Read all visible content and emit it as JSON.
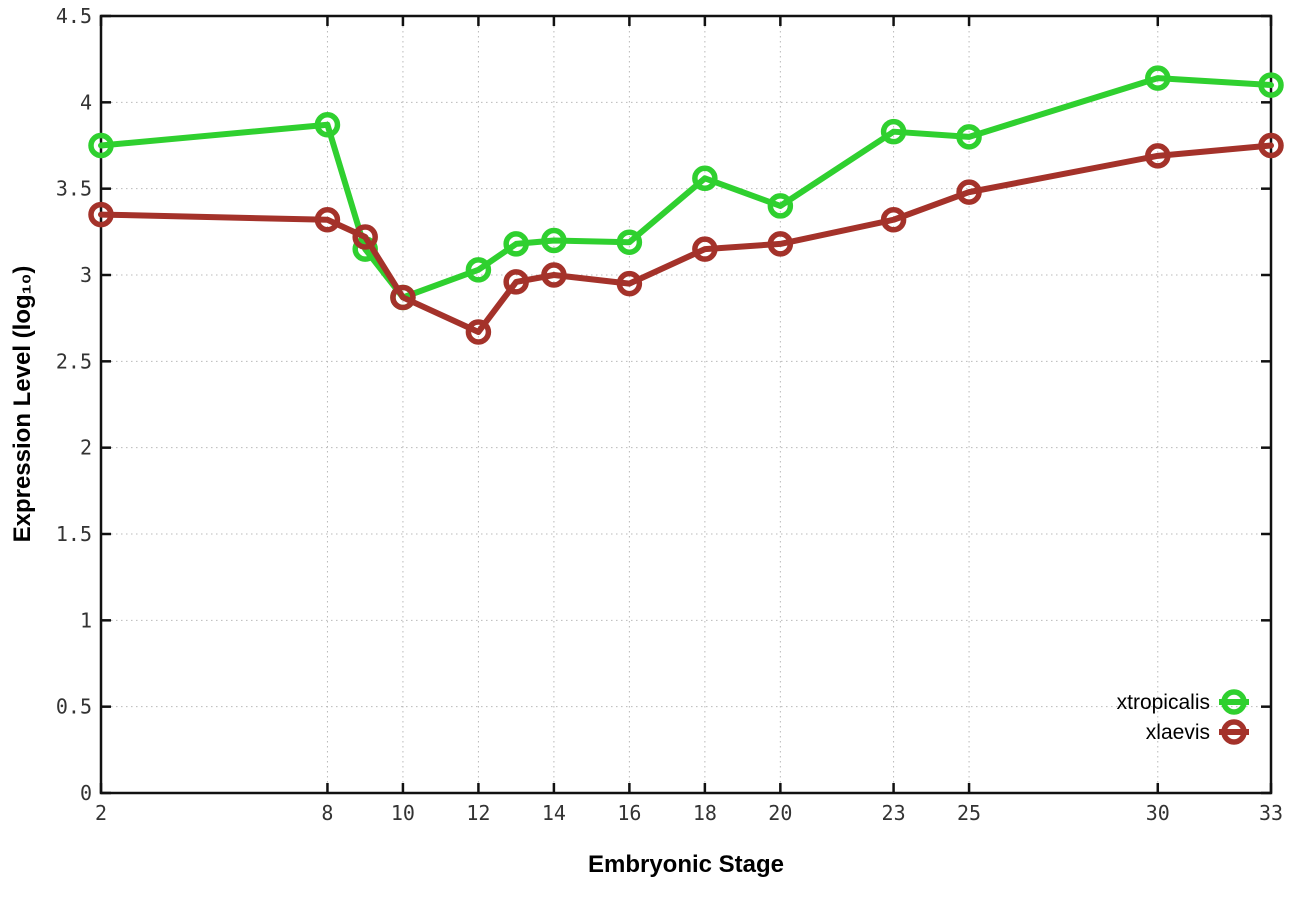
{
  "figure": {
    "background": "#ffffff",
    "border_color": "#111111",
    "grid_color": "#b9b9b9",
    "tick_label_color": "#333333"
  },
  "chart_data": {
    "type": "line",
    "title": "",
    "xlabel": "Embryonic Stage",
    "ylabel": "Expression Level (log₁₀)",
    "xlim": [
      2,
      33
    ],
    "ylim": [
      0,
      4.5
    ],
    "x_ticks": [
      2,
      8,
      10,
      12,
      14,
      16,
      18,
      20,
      23,
      25,
      30,
      33
    ],
    "y_ticks": [
      0,
      0.5,
      1,
      1.5,
      2,
      2.5,
      3,
      3.5,
      4,
      4.5
    ],
    "grid": "dotted",
    "legend_position": "bottom-right-inside",
    "x": [
      2,
      8,
      9,
      10,
      12,
      13,
      14,
      16,
      18,
      20,
      23,
      25,
      30,
      33
    ],
    "series": [
      {
        "name": "xtropicalis",
        "color": "#2fd02f",
        "marker": "open-circle",
        "values": [
          3.75,
          3.87,
          3.15,
          2.87,
          3.03,
          3.18,
          3.2,
          3.19,
          3.56,
          3.4,
          3.83,
          3.8,
          4.14,
          4.1
        ]
      },
      {
        "name": "xlaevis",
        "color": "#a4322a",
        "marker": "open-circle",
        "values": [
          3.35,
          3.32,
          3.22,
          2.87,
          2.67,
          2.96,
          3.0,
          2.95,
          3.15,
          3.18,
          3.32,
          3.48,
          3.69,
          3.75
        ]
      }
    ]
  }
}
